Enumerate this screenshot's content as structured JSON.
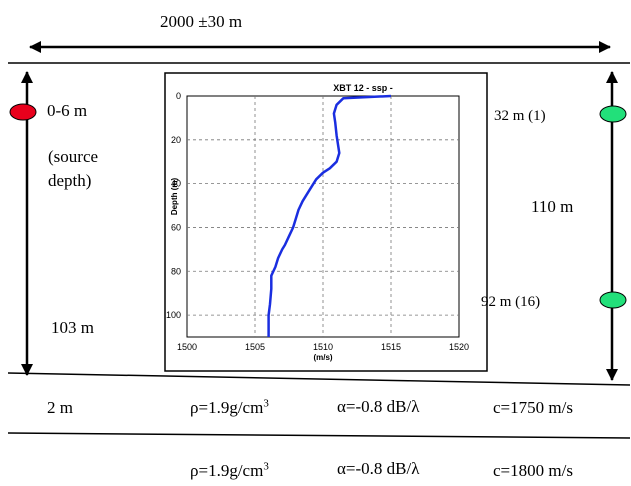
{
  "range": {
    "label": "2000 ±30 m"
  },
  "left_side": {
    "source_label": "0-6 m",
    "source_note": "(source depth)",
    "source_note_line1": "(source",
    "source_note_line2": "depth)",
    "water_depth": "103 m",
    "marker_color": "#e8001c"
  },
  "right_side": {
    "top_hydrophone": "32 m (1)",
    "span_label": "110 m",
    "bottom_hydrophone": "92 m (16)",
    "marker_color": "#22e07a"
  },
  "layers": [
    {
      "thickness": "2 m",
      "rho": "ρ=1.9g/cm",
      "rho_exp": "3",
      "alpha": "α=-0.8 dB/λ",
      "speed": "c=1750 m/s"
    },
    {
      "thickness": "",
      "rho": "ρ=1.9g/cm",
      "rho_exp": "3",
      "alpha": "α=-0.8 dB/λ",
      "speed": "c=1800 m/s"
    }
  ],
  "chart_data": {
    "type": "line",
    "title": "XBT 12 - ssp -",
    "xlabel": "(m/s)",
    "ylabel": "Depth (m)",
    "xlim": [
      1500,
      1520
    ],
    "ylim": [
      110,
      0
    ],
    "x_ticks": [
      "1500",
      "1505",
      "1510",
      "1515",
      "1520"
    ],
    "y_ticks": [
      "0",
      "20",
      "40",
      "60",
      "80",
      "100"
    ],
    "grid": true,
    "series_color": "#1a2ee0",
    "series": [
      {
        "x": [
          1515,
          1511.5,
          1511,
          1510.8,
          1510.9,
          1511.0,
          1511.2,
          1511.0,
          1510.5,
          1510.0,
          1509.5,
          1509.0,
          1508.5,
          1508.2,
          1508.0,
          1507.8,
          1507.5,
          1507.2,
          1507.0,
          1506.7,
          1506.5,
          1506.2,
          1506.2,
          1506.1,
          1506.0,
          1506.0,
          1506.0
        ],
        "y": [
          0,
          1,
          4,
          8,
          12,
          18,
          26,
          30,
          33,
          35,
          38,
          43,
          48,
          52,
          56,
          60,
          64,
          68,
          70,
          74,
          78,
          82,
          88,
          95,
          100,
          105,
          110
        ]
      }
    ]
  }
}
